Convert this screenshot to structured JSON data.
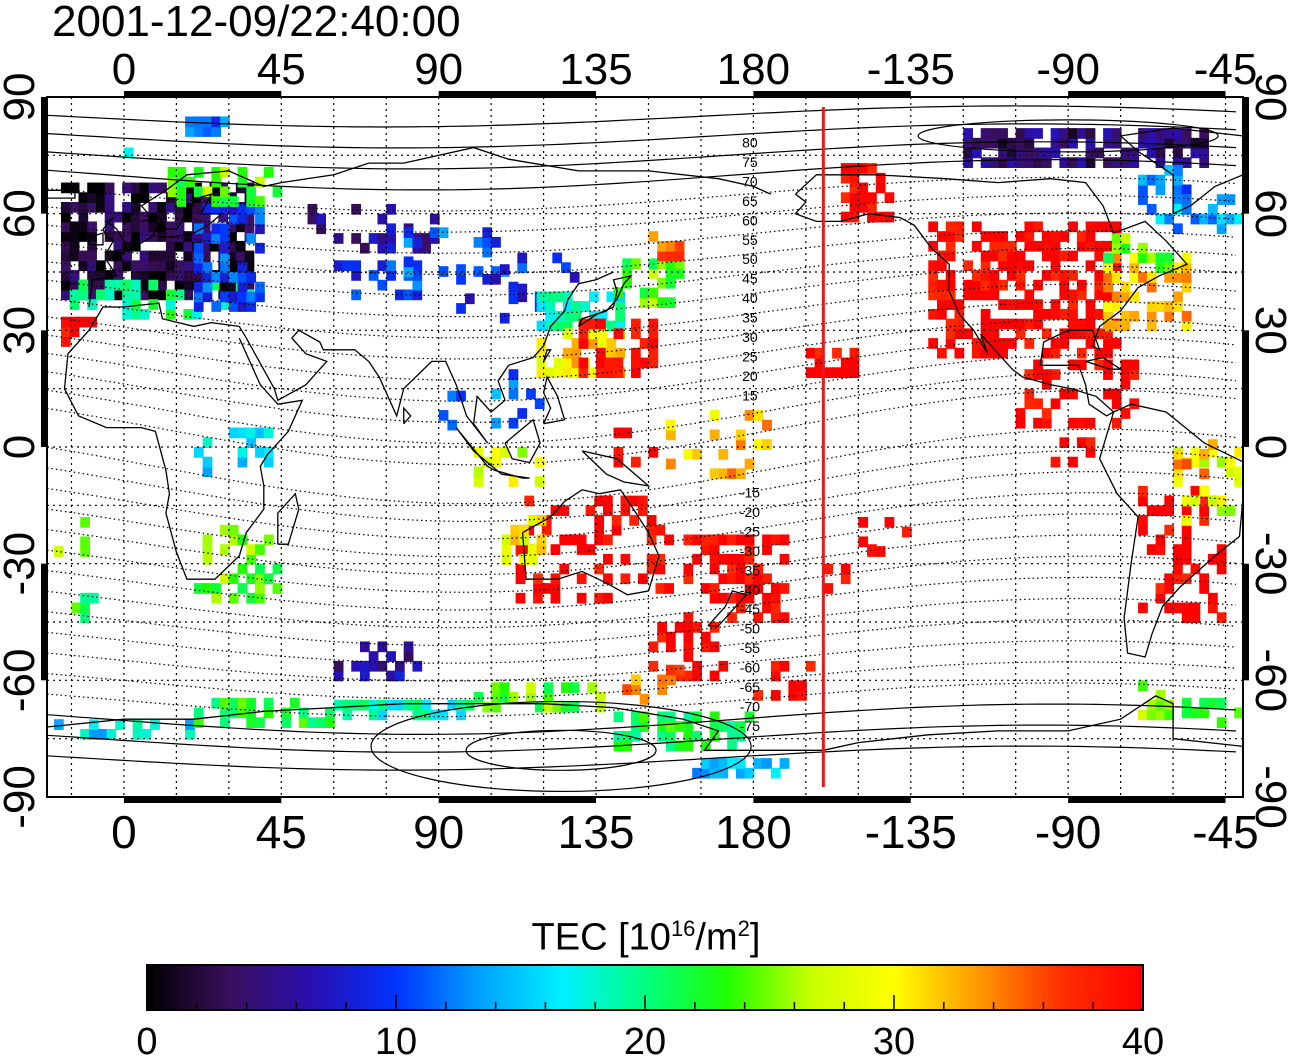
{
  "map": {
    "timestamp": "2001-12-09/22:40:00",
    "projection": "equirectangular",
    "lon_range": [
      -22,
      320
    ],
    "lat_range": [
      -90,
      90
    ],
    "lon_tick_labels": [
      "0",
      "45",
      "90",
      "135",
      "180",
      "-135",
      "-90",
      "-45"
    ],
    "lon_tick_values": [
      0,
      45,
      90,
      135,
      180,
      225,
      270,
      315
    ],
    "lat_tick_labels": [
      "90",
      "60",
      "30",
      "0",
      "-30",
      "-60",
      "-90"
    ],
    "lat_tick_values": [
      90,
      60,
      30,
      0,
      -30,
      -60,
      -90
    ],
    "terminator_lon": 200,
    "terminator_color": "#e8191c",
    "contour_labels": [
      "80",
      "75",
      "70",
      "65",
      "60",
      "55",
      "50",
      "45",
      "40",
      "35",
      "30",
      "25",
      "20",
      "15",
      "-15",
      "-20",
      "-25",
      "-30",
      "-35",
      "-40",
      "-45",
      "-50",
      "-55",
      "-60",
      "-65",
      "-70",
      "-75"
    ],
    "contour_label_lats": [
      80,
      75,
      70,
      65,
      60,
      55,
      50,
      45,
      40,
      35,
      30,
      25,
      20,
      15,
      -15,
      -20,
      -25,
      -30,
      -35,
      -40,
      -45,
      -50,
      -55,
      -60,
      -65,
      -70,
      -75
    ]
  },
  "colorbar": {
    "title_prefix": "TEC  [10",
    "title_exp1": "16",
    "title_mid": "/m",
    "title_exp2": "2",
    "title_suffix": "]",
    "min": 0,
    "max": 40,
    "tick_labels": [
      "0",
      "10",
      "20",
      "30",
      "40"
    ],
    "tick_values": [
      0,
      10,
      20,
      30,
      40
    ],
    "colors": [
      "#000000",
      "#3a0f5e",
      "#2a0fb0",
      "#0033ff",
      "#00a0ff",
      "#00f0ff",
      "#00ff80",
      "#20ff00",
      "#c8ff00",
      "#ffff00",
      "#ff9a00",
      "#ff3000",
      "#ff0000"
    ]
  }
}
